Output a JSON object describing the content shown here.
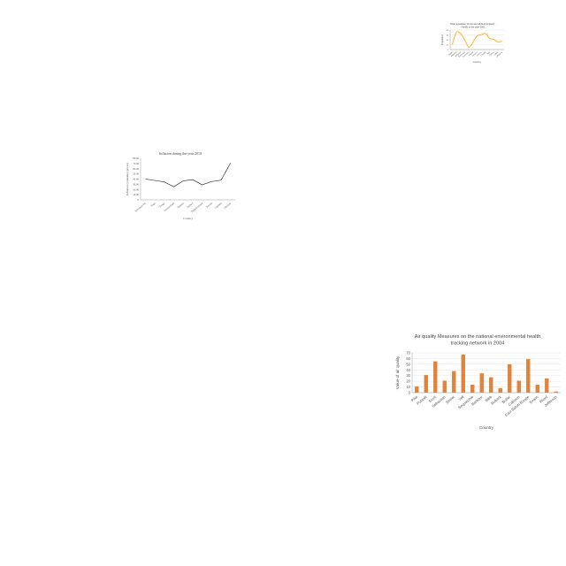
{
  "charts": {
    "top_right": {
      "chart_data": {
        "type": "line",
        "title": "Total population 16 hrs tax left AHA (organiz...",
        "subtitle": "(%HS) in the year 2001",
        "xlabel": "Country",
        "ylabel": "Population",
        "categories": [
          "Spain",
          "Belgium",
          "Bulgaria",
          "Denmark",
          "Germany",
          "Ireland",
          "Greece",
          "France",
          "Croatia",
          "Italy",
          "Cyprus",
          "Latvia",
          "Lithuania"
        ],
        "values": [
          20,
          70,
          66,
          40,
          9,
          30,
          56,
          61,
          66,
          46,
          42,
          31,
          34
        ],
        "ylim": [
          0,
          80
        ],
        "yticks": [
          0,
          20,
          40,
          60,
          80
        ],
        "line_color": "#f5b82e",
        "grid": true
      }
    },
    "middle": {
      "chart_data": {
        "type": "line",
        "title": "Inflation during the year 2019",
        "xlabel": "Country",
        "ylabel": "Inflation (consumer prices)",
        "categories": [
          "Solomon Isl.",
          "Togo",
          "Tonga",
          "Switzerland",
          "Tunisia",
          "Turkey",
          "Turkmenistan",
          "Tuvalu",
          "Uganda",
          "Ukraine"
        ],
        "values": [
          40.1,
          37.3,
          34.6,
          25.2,
          36.5,
          38.9,
          29.0,
          35.2,
          37.9,
          70.9
        ],
        "ylim": [
          0,
          80
        ],
        "yticks": [
          "0",
          "10.00",
          "20.00",
          "30.00",
          "40.00",
          "50.00",
          "60.00",
          "70.00",
          "80.00"
        ],
        "line_color": "#333333",
        "grid": false
      }
    },
    "bottom": {
      "chart_data": {
        "type": "bar",
        "title": "Air quality Measures on the national environmental health tracking network in 2004",
        "xlabel": "Country",
        "ylabel": "Value of air quality",
        "categories": [
          "Pike",
          "Pulaski",
          "Scott",
          "Sebastian",
          "Sevier",
          "Yell",
          "Sequatchie",
          "Barbour",
          "Bibb",
          "Bullock",
          "Butler",
          "Calhoun",
          "East Baton Rouge",
          "Evans",
          "Floyd",
          "Jefferson"
        ],
        "values": [
          11,
          31,
          55,
          21,
          38,
          67,
          14,
          34,
          27,
          8,
          50,
          21,
          59,
          14,
          25,
          2
        ],
        "ylim": [
          0,
          70
        ],
        "yticks": [
          0,
          10,
          20,
          30,
          40,
          50,
          60,
          70
        ],
        "bar_color": "#e0833c",
        "grid": true
      }
    }
  }
}
